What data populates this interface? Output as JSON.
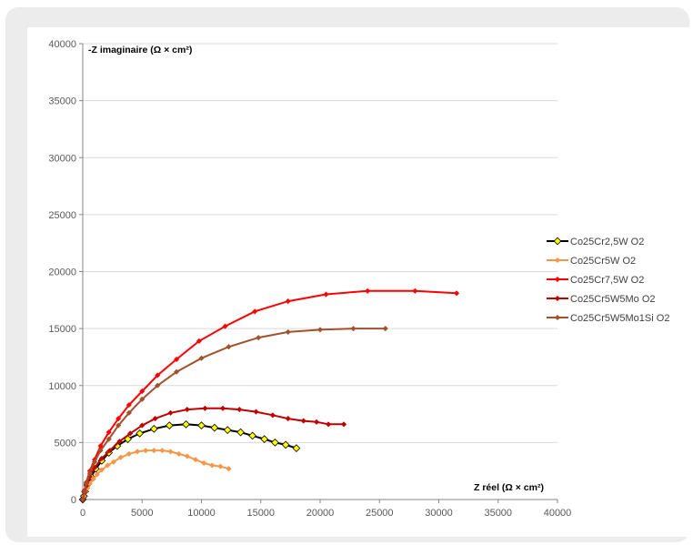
{
  "chart_data": {
    "type": "scatter",
    "xlabel": "Z réel (Ω × cm²)",
    "ylabel": "-Z imaginaire (Ω × cm²)",
    "xlim": [
      0,
      40000
    ],
    "ylim": [
      0,
      40000
    ],
    "x_ticks": [
      "0",
      "5000",
      "10000",
      "15000",
      "20000",
      "25000",
      "30000",
      "35000",
      "40000"
    ],
    "y_ticks": [
      "0",
      "5000",
      "10000",
      "15000",
      "20000",
      "25000",
      "30000",
      "35000",
      "40000"
    ],
    "grid": "horizontal",
    "legend_position": "right",
    "series": [
      {
        "name": "Co25Cr2,5W O2",
        "color": "#000000",
        "marker_fill": "#ffff00",
        "x": [
          0,
          100,
          200,
          400,
          700,
          1100,
          1600,
          2200,
          2900,
          3800,
          4800,
          6000,
          7300,
          8700,
          10000,
          11100,
          12200,
          13300,
          14300,
          15300,
          16200,
          17100,
          18000
        ],
        "y": [
          0,
          300,
          700,
          1300,
          2000,
          2700,
          3400,
          4100,
          4700,
          5300,
          5800,
          6200,
          6500,
          6600,
          6500,
          6300,
          6100,
          5900,
          5600,
          5300,
          5000,
          4800,
          4500
        ]
      },
      {
        "name": "Co25Cr5W O2",
        "color": "#f79646",
        "marker_fill": "#f79646",
        "x": [
          0,
          100,
          200,
          400,
          600,
          900,
          1200,
          1600,
          2100,
          2600,
          3200,
          3900,
          4600,
          5300,
          6000,
          6700,
          7400,
          8100,
          8800,
          9500,
          10200,
          10900,
          11600,
          12300
        ],
        "y": [
          0,
          300,
          600,
          1000,
          1400,
          1800,
          2200,
          2600,
          3000,
          3300,
          3700,
          4000,
          4200,
          4300,
          4300,
          4300,
          4200,
          4000,
          3800,
          3500,
          3200,
          3000,
          2900,
          2700
        ]
      },
      {
        "name": "Co25Cr7,5W O2",
        "color": "#ff0000",
        "marker_fill": "#ff0000",
        "x": [
          0,
          150,
          300,
          600,
          1000,
          1500,
          2200,
          3000,
          3900,
          5000,
          6300,
          7900,
          9800,
          12000,
          14500,
          17300,
          20500,
          24000,
          28000,
          31500
        ],
        "y": [
          0,
          800,
          1500,
          2500,
          3500,
          4700,
          5900,
          7100,
          8300,
          9500,
          10900,
          12300,
          13900,
          15200,
          16500,
          17400,
          18000,
          18300,
          18300,
          18100
        ]
      },
      {
        "name": "Co25Cr5W5Mo O2",
        "color": "#c00000",
        "marker_fill": "#c00000",
        "x": [
          0,
          150,
          300,
          600,
          1000,
          1600,
          2300,
          3100,
          4000,
          5000,
          6100,
          7400,
          8800,
          10300,
          11800,
          13200,
          14600,
          16000,
          17300,
          18600,
          19700,
          20700,
          22000
        ],
        "y": [
          0,
          600,
          1200,
          2000,
          2800,
          3600,
          4300,
          5100,
          5800,
          6500,
          7100,
          7600,
          7900,
          8000,
          8000,
          7900,
          7700,
          7400,
          7100,
          6900,
          6800,
          6600,
          6600
        ]
      },
      {
        "name": "Co25Cr5W5Mo1Si O2",
        "color": "#a0522d",
        "marker_fill": "#a0522d",
        "x": [
          0,
          150,
          300,
          600,
          1000,
          1500,
          2200,
          3000,
          3900,
          5000,
          6300,
          7900,
          10000,
          12300,
          14800,
          17300,
          20000,
          22800,
          25500
        ],
        "y": [
          0,
          700,
          1400,
          2300,
          3300,
          4300,
          5300,
          6500,
          7600,
          8800,
          10000,
          11200,
          12400,
          13400,
          14200,
          14700,
          14900,
          15000,
          15000
        ]
      }
    ]
  }
}
